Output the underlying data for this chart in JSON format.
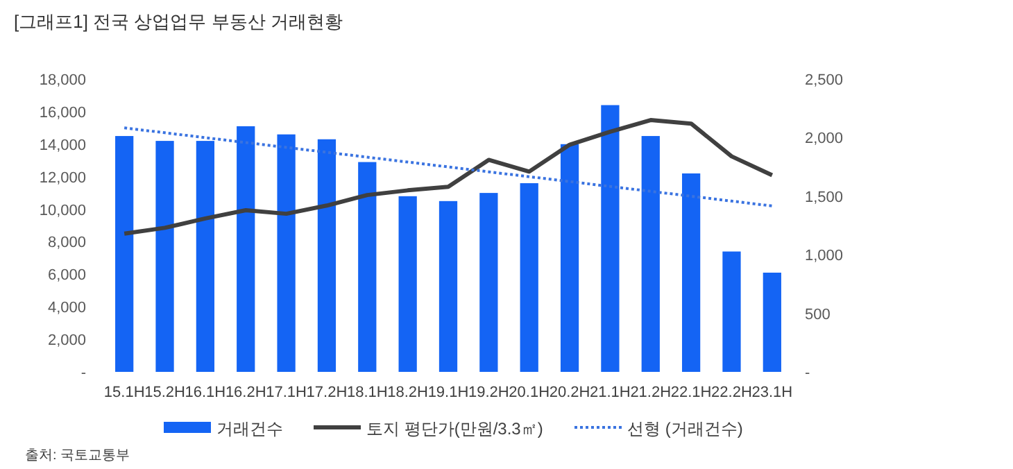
{
  "chart_data": {
    "type": "bar",
    "title": "[그래프1] 전국 상업업무 부동산 거래현황",
    "categories": [
      "15.1H",
      "15.2H",
      "16.1H",
      "16.2H",
      "17.1H",
      "17.2H",
      "18.1H",
      "18.2H",
      "19.1H",
      "19.2H",
      "20.1H",
      "20.2H",
      "21.1H",
      "21.2H",
      "22.1H",
      "22.2H",
      "23.1H"
    ],
    "series": [
      {
        "name": "거래건수",
        "color": "#1464f4",
        "values": [
          14500,
          14200,
          14200,
          15100,
          14600,
          14300,
          12900,
          10800,
          10500,
          11000,
          11600,
          14000,
          16400,
          14500,
          12200,
          7400,
          6100
        ]
      },
      {
        "name": "토지 평단가(만원/3.3㎡)",
        "type": "line",
        "axis": "y2",
        "color": "#404040",
        "line_style": "solid",
        "values": [
          1180,
          1230,
          1310,
          1380,
          1350,
          1420,
          1510,
          1550,
          1580,
          1810,
          1710,
          1940,
          2050,
          2150,
          2120,
          1840,
          1680
        ]
      },
      {
        "name": "선형 (거래건수)",
        "type": "line",
        "color": "#3a73e0",
        "line_style": "dotted",
        "values": [
          15000,
          14700,
          14400,
          14100,
          13800,
          13500,
          13200,
          12900,
          12600,
          12300,
          12000,
          11700,
          11400,
          11100,
          10800,
          10500,
          10200
        ]
      }
    ],
    "ylim": [
      0,
      18000
    ],
    "yticks": [
      {
        "value": 0,
        "label": "-"
      },
      {
        "value": 2000,
        "label": "2,000"
      },
      {
        "value": 4000,
        "label": "4,000"
      },
      {
        "value": 6000,
        "label": "6,000"
      },
      {
        "value": 8000,
        "label": "8,000"
      },
      {
        "value": 10000,
        "label": "10,000"
      },
      {
        "value": 12000,
        "label": "12,000"
      },
      {
        "value": 14000,
        "label": "14,000"
      },
      {
        "value": 16000,
        "label": "16,000"
      },
      {
        "value": 18000,
        "label": "18,000"
      }
    ],
    "y2lim": [
      0,
      2500
    ],
    "y2ticks": [
      {
        "value": 0,
        "label": "-"
      },
      500,
      {
        "value": 1000,
        "label": "1,000"
      },
      {
        "value": 1500,
        "label": "1,500"
      },
      {
        "value": 2000,
        "label": "2,000"
      },
      {
        "value": 2500,
        "label": "2,500"
      }
    ],
    "grid": false,
    "legend": "bottom",
    "annotations": [
      "출처: 국토교통부"
    ]
  }
}
